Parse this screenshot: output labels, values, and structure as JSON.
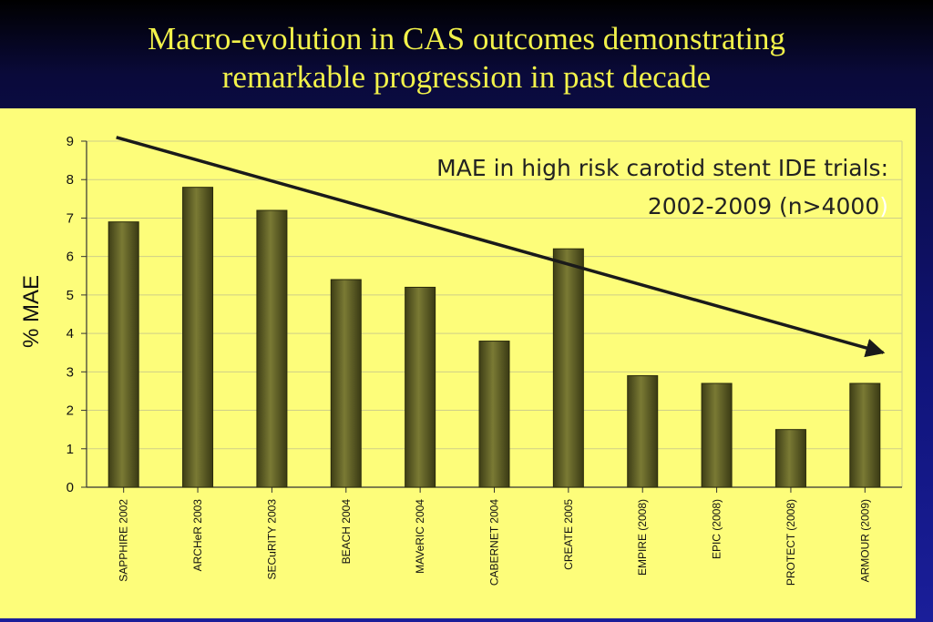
{
  "slide": {
    "title_line1": "Macro-evolution in CAS outcomes demonstrating",
    "title_line2": "remarkable progression in past decade"
  },
  "chart_data": {
    "type": "bar",
    "categories": [
      "SAPPHIRE 2002",
      "ARCHeR 2003",
      "SECuRITY 2003",
      "BEACH 2004",
      "MAVeRIC 2004",
      "CABERNET 2004",
      "CREATE 2005",
      "EMPIRE (2008)",
      "EPIC (2008)",
      "PROTECT (2008)",
      "ARMOUR (2009)"
    ],
    "values": [
      6.9,
      7.8,
      7.2,
      5.4,
      5.2,
      3.8,
      6.2,
      2.9,
      2.7,
      1.5,
      2.7
    ],
    "ylabel": "% MAE",
    "ylim": [
      0,
      9
    ],
    "yticks": [
      0,
      1,
      2,
      3,
      4,
      5,
      6,
      7,
      8,
      9
    ],
    "grid": true,
    "annotation": {
      "line1": "MAE in high risk carotid stent IDE trials:",
      "line2": "2002-2009 (n>4000",
      "line2_end": ")"
    },
    "trend_arrow": {
      "from": {
        "category": 0,
        "y": 9.1
      },
      "to": {
        "category": 10,
        "y": 3.5
      }
    },
    "colors": {
      "bar": "#5a5a24",
      "bar_highlight": "#8a8a3a",
      "background": "#fdfd7a",
      "grid": "#cfcf88",
      "title": "#f2f24a"
    }
  }
}
